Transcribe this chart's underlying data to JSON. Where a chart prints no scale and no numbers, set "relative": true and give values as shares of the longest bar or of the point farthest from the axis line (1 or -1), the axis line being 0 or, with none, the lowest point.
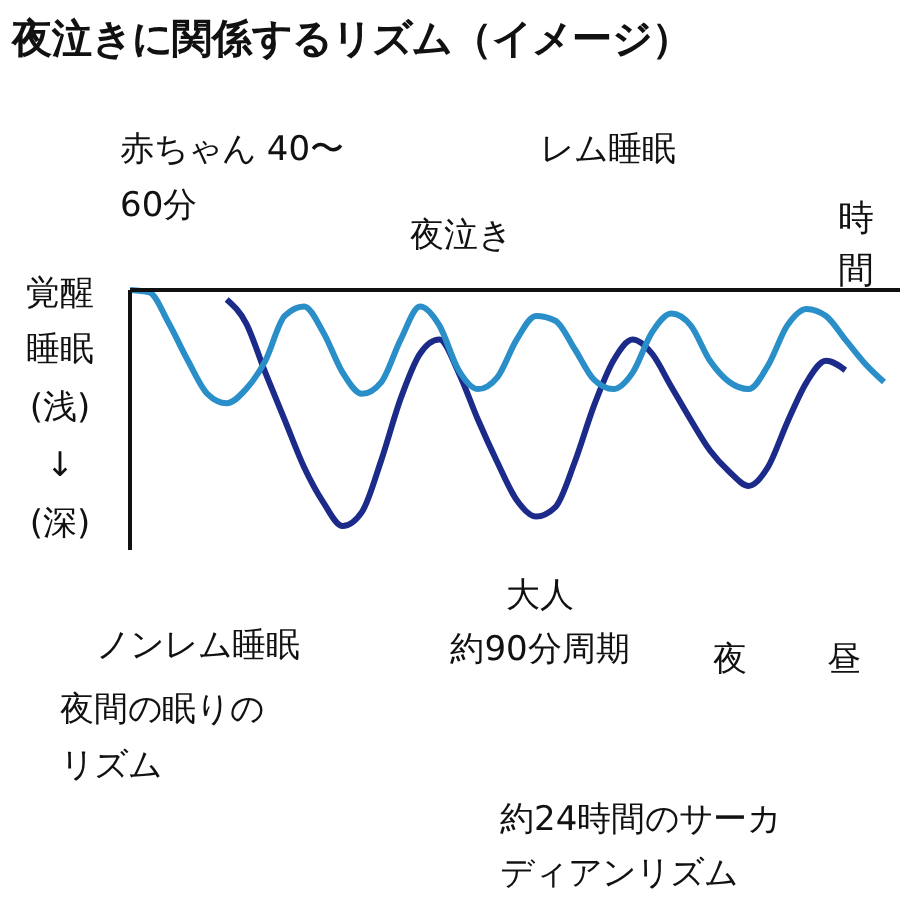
{
  "chart_data": {
    "type": "line",
    "relative": true,
    "title": "夜泣きに関係するリズム（イメージ）",
    "xlabel": "時間",
    "ylabel": "睡眠(浅)↓(深)",
    "categories": [
      null,
      null,
      null,
      null,
      null,
      null,
      null,
      null,
      null,
      null,
      null,
      null,
      null,
      null,
      null,
      null,
      null,
      null,
      null,
      null,
      null,
      null,
      null,
      null,
      null,
      null,
      null,
      null,
      null,
      null,
      null,
      null,
      null,
      null,
      null,
      null,
      null,
      null,
      null,
      null
    ],
    "series": [
      {
        "color": "#2a8fc8",
        "values": [
          0,
          -0.01,
          -0.14,
          -0.3,
          -0.44,
          -0.48,
          -0.42,
          -0.3,
          -0.11,
          -0.07,
          -0.18,
          -0.35,
          -0.44,
          -0.39,
          -0.21,
          -0.07,
          -0.15,
          -0.34,
          -0.42,
          -0.37,
          -0.21,
          -0.11,
          -0.13,
          -0.25,
          -0.38,
          -0.42,
          -0.35,
          -0.18,
          -0.1,
          -0.15,
          -0.3,
          -0.39,
          -0.42,
          -0.32,
          -0.15,
          -0.08,
          -0.11,
          -0.21,
          -0.31,
          -0.39
        ]
      },
      {
        "color": "#1c2a8a",
        "values": [
          null,
          null,
          null,
          null,
          null,
          -0.04,
          -0.14,
          -0.35,
          -0.55,
          -0.75,
          -0.9,
          -1,
          -0.94,
          -0.72,
          -0.46,
          -0.27,
          -0.21,
          -0.35,
          -0.55,
          -0.73,
          -0.89,
          -0.96,
          -0.92,
          -0.73,
          -0.49,
          -0.3,
          -0.21,
          -0.27,
          -0.41,
          -0.55,
          -0.68,
          -0.77,
          -0.83,
          -0.75,
          -0.56,
          -0.39,
          -0.3,
          -0.34,
          null,
          null
        ]
      }
    ],
    "annotations": [
      "赤ちゃん 40〜\n60分",
      "夜泣き",
      "レム睡眠",
      "ノンレム睡眠",
      "大人",
      "約90分周期",
      "夜間の眠りの",
      "リズム",
      "夜",
      "昼",
      "約24時間のサーカ",
      "ディアンリズム",
      "覚醒"
    ]
  }
}
